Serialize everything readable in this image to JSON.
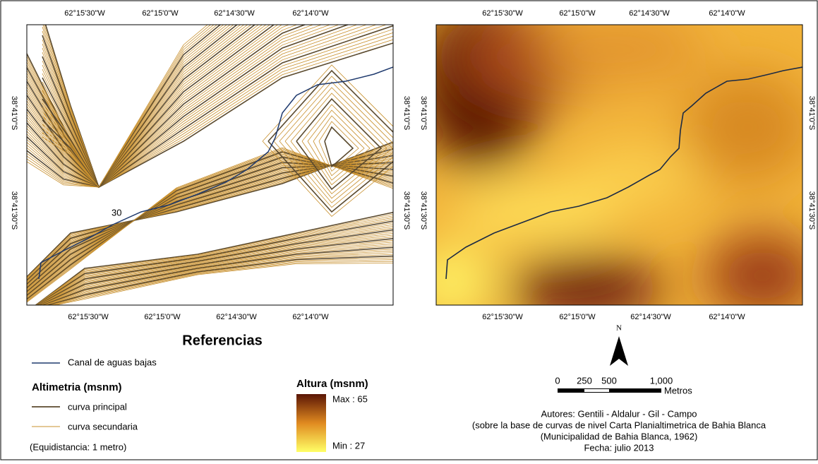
{
  "grid_labels": {
    "longitude": [
      "62°15'30\"W",
      "62°15'0\"W",
      "62°14'30\"W",
      "62°14'0\"W"
    ],
    "latitude": [
      "38°41'0\"S",
      "38°41'30\"S"
    ]
  },
  "contour_label": "30",
  "legend": {
    "title": "Referencias",
    "channel": "Canal de aguas bajas",
    "altimetry_title": "Altimetria (msnm)",
    "main_curve": "curva principal",
    "secondary_curve": "curva secundaria",
    "note": "(Equidistancia: 1 metro)"
  },
  "height_legend": {
    "title": "Altura (msnm)",
    "max": "Max : 65",
    "min": "Min : 27"
  },
  "north": "N",
  "scale_bar": {
    "labels": [
      "0",
      "250",
      "500",
      "1,000"
    ],
    "unit": "Metros"
  },
  "credits": [
    "Autores: Gentili - Aldalur - Gil - Campo",
    "(sobre la base de curvas de nivel Carta Planialtimetrica de Bahia Blanca",
    "(Municipalidad de Bahia Blanca, 1962)",
    "Fecha: julio 2013"
  ]
}
